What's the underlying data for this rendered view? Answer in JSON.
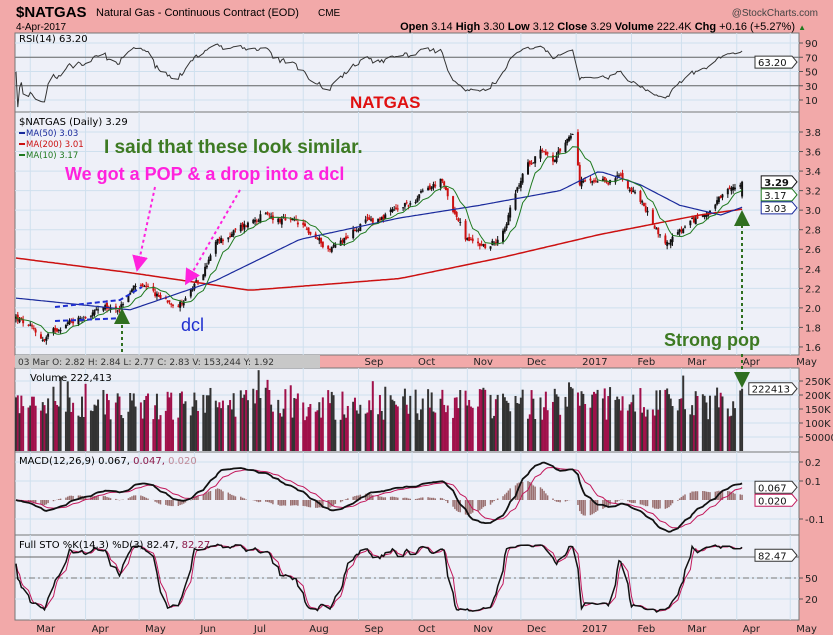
{
  "header": {
    "symbol": "$NATGAS",
    "name": "Natural Gas - Continuous Contract (EOD)",
    "exchange": "CME",
    "date": "4-Apr-2017",
    "copyright": "@StockCharts.com",
    "ohlc": {
      "open_label": "Open",
      "open": "3.14",
      "high_label": "High",
      "high": "3.30",
      "low_label": "Low",
      "low": "3.12",
      "close_label": "Close",
      "close": "3.29",
      "volume_label": "Volume",
      "volume": "222.4K",
      "chg_label": "Chg",
      "chg": "+0.16 (+5.27%)",
      "chg_arrow": "▲"
    }
  },
  "info_box": "03 Mar O: 2.82   H: 2.84   L: 2.77   C: 2.83   V: 153,244   Y: 1.92",
  "annotations": {
    "title": "NATGAS",
    "line1": "I said that these look similar.",
    "line2": "We got a POP & a drop into a dcl",
    "dcl": "dcl",
    "strong_pop": "Strong pop"
  },
  "colors": {
    "background": "#f2a9a9",
    "panel": "#eef0f8",
    "grid": "#cfe0ee",
    "ma50": "#1a2a9c",
    "ma200": "#cc1111",
    "ma10": "#1f7a1f",
    "up": "#111111",
    "down": "#cc1111",
    "volume": "#a0104a",
    "annotation_green": "#3d7a23",
    "annotation_magenta": "#ff22dd",
    "annotation_blue": "#1f2fd0",
    "annotation_red": "#e01010"
  },
  "chart_data": {
    "type": "candlestick",
    "title": "$NATGAS (Daily) 3.29",
    "x_months_top": [
      "Sep",
      "Oct",
      "Nov",
      "Dec",
      "2017",
      "Feb",
      "Mar",
      "Apr",
      "May"
    ],
    "x_months_bottom": [
      "Mar",
      "Apr",
      "May",
      "Jun",
      "Jul",
      "Aug",
      "Sep",
      "Oct",
      "Nov",
      "Dec",
      "2017",
      "Feb",
      "Mar",
      "Apr",
      "May"
    ],
    "month_starts": [
      "2016-03-01",
      "2016-04-01",
      "2016-05-01",
      "2016-06-01",
      "2016-07-01",
      "2016-08-01",
      "2016-09-01",
      "2016-10-01",
      "2016-11-01",
      "2016-12-01",
      "2017-01-01",
      "2017-02-01",
      "2017-03-01",
      "2017-04-01",
      "2017-05-01"
    ],
    "price_close_anchors": [
      [
        "2016-02-22",
        1.9
      ],
      [
        "2016-03-09",
        1.67
      ],
      [
        "2016-03-18",
        1.82
      ],
      [
        "2016-04-06",
        1.96
      ],
      [
        "2016-04-20",
        2.0
      ],
      [
        "2016-04-29",
        2.23
      ],
      [
        "2016-05-13",
        2.1
      ],
      [
        "2016-05-24",
        2.05
      ],
      [
        "2016-06-04",
        2.28
      ],
      [
        "2016-06-13",
        2.65
      ],
      [
        "2016-07-08",
        2.95
      ],
      [
        "2016-07-30",
        2.85
      ],
      [
        "2016-08-16",
        2.6
      ],
      [
        "2016-09-02",
        2.85
      ],
      [
        "2016-09-24",
        3.0
      ],
      [
        "2016-10-17",
        3.3
      ],
      [
        "2016-10-28",
        2.85
      ],
      [
        "2016-10-31",
        2.7
      ],
      [
        "2016-11-14",
        2.62
      ],
      [
        "2016-11-22",
        2.85
      ],
      [
        "2016-12-03",
        3.4
      ],
      [
        "2016-12-12",
        3.65
      ],
      [
        "2016-12-20",
        3.5
      ],
      [
        "2016-12-31",
        3.85
      ],
      [
        "2017-01-03",
        3.3
      ],
      [
        "2017-01-14",
        3.25
      ],
      [
        "2017-01-26",
        3.35
      ],
      [
        "2017-02-06",
        3.1
      ],
      [
        "2017-02-20",
        2.65
      ],
      [
        "2017-03-06",
        2.85
      ],
      [
        "2017-03-23",
        3.1
      ],
      [
        "2017-04-04",
        3.29
      ]
    ],
    "last_bar": {
      "open": 3.14,
      "high": 3.3,
      "low": 3.12,
      "close": 3.29,
      "volume": 222413
    },
    "ma50_anchors": [
      [
        "2016-02-22",
        2.1
      ],
      [
        "2016-04-26",
        1.98
      ],
      [
        "2016-06-13",
        2.28
      ],
      [
        "2016-07-30",
        2.7
      ],
      [
        "2016-09-24",
        2.92
      ],
      [
        "2016-11-08",
        3.05
      ],
      [
        "2016-12-23",
        3.2
      ],
      [
        "2017-01-14",
        3.4
      ],
      [
        "2017-02-06",
        3.26
      ],
      [
        "2017-02-28",
        3.05
      ],
      [
        "2017-03-23",
        2.95
      ],
      [
        "2017-04-04",
        3.03
      ]
    ],
    "ma200_anchors": [
      [
        "2016-02-22",
        2.51
      ],
      [
        "2016-04-26",
        2.36
      ],
      [
        "2016-07-02",
        2.18
      ],
      [
        "2016-09-24",
        2.3
      ],
      [
        "2016-11-19",
        2.51
      ],
      [
        "2017-01-14",
        2.75
      ],
      [
        "2017-03-11",
        2.95
      ],
      [
        "2017-04-04",
        3.01
      ]
    ],
    "legend": [
      {
        "label": "$NATGAS (Daily) 3.29"
      },
      {
        "label": "MA(50) 3.03",
        "color": "#1a2a9c"
      },
      {
        "label": "MA(200) 3.01",
        "color": "#cc1111"
      },
      {
        "label": "MA(10) 3.17",
        "color": "#1f7a1f"
      }
    ],
    "price_ticks": [
      "3.8",
      "3.6",
      "3.4",
      "3.2",
      "3.0",
      "2.8",
      "2.6",
      "2.4",
      "2.2",
      "2.0",
      "1.8",
      "1.6"
    ],
    "price_tick_values": [
      3.8,
      3.6,
      3.4,
      3.2,
      3.0,
      2.8,
      2.6,
      2.4,
      2.2,
      2.0,
      1.8,
      1.6
    ],
    "price_range": [
      1.55,
      3.98
    ],
    "price_tags": [
      "3.29",
      "3.17",
      "3.03"
    ],
    "price_tag_values": [
      3.29,
      3.17,
      3.03
    ],
    "rsi": {
      "label": "RSI(14) 63.20",
      "value_tag": "63.20",
      "value": 63.2,
      "ticks": [
        "90",
        "70",
        "50",
        "30",
        "10"
      ],
      "tick_values": [
        90,
        70,
        50,
        30,
        10
      ]
    },
    "volume": {
      "label": "Volume 222,413",
      "value_tag": "222413",
      "ticks": [
        "250K",
        "200K",
        "150K",
        "100K",
        "50000"
      ],
      "tick_values": [
        250000,
        200000,
        150000,
        100000,
        50000
      ]
    },
    "macd": {
      "label": "MACD(12,26,9) 0.067,",
      "signal_label": "0.047,",
      "hist_label": "0.020",
      "tags": [
        "0.067",
        "0.020"
      ],
      "tag_values": [
        0.067,
        0.02
      ],
      "ticks": [
        "0.2",
        "0.1",
        "-0.1"
      ],
      "tick_values": [
        0.2,
        0.1,
        -0.1
      ]
    },
    "sto": {
      "label": "Full STO %K(14,3) %D(3) 82.47,",
      "d_label": "82.27",
      "value_tag": "82.47",
      "value": 82.47,
      "ticks": [
        "50",
        "20"
      ],
      "tick_values": [
        50,
        20
      ]
    }
  }
}
